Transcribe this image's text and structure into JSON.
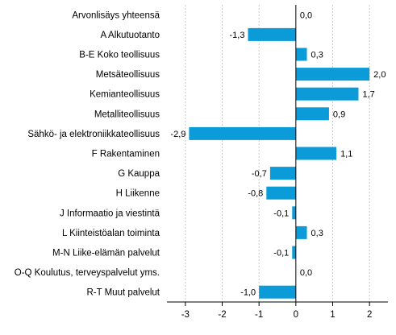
{
  "chart_data": {
    "type": "bar",
    "orientation": "horizontal",
    "categories": [
      "Arvonlisäys yhteensä",
      "A Alkutuotanto",
      "B-E Koko teollisuus",
      "Metsäteollisuus",
      "Kemianteollisuus",
      "Metalliteollisuus",
      "Sähkö- ja elektroniikkateollisuus",
      "F Rakentaminen",
      "G Kauppa",
      "H Liikenne",
      "J Informaatio ja viestintä",
      "L Kiinteistöalan toiminta",
      "M-N Liike-elämän palvelut",
      "O-Q Koulutus, terveyspalvelut yms.",
      "R-T Muut palvelut"
    ],
    "values": [
      0.0,
      -1.3,
      0.3,
      2.0,
      1.7,
      0.9,
      -2.9,
      1.1,
      -0.7,
      -0.8,
      -0.1,
      0.3,
      -0.1,
      0.0,
      -1.0
    ],
    "value_labels": [
      "0,0",
      "-1,3",
      "0,3",
      "2,0",
      "1,7",
      "0,9",
      "-2,9",
      "1,1",
      "-0,7",
      "-0,8",
      "-0,1",
      "0,3",
      "-0,1",
      "0,0",
      "-1,0"
    ],
    "xlim": [
      -3.5,
      2.5
    ],
    "xticks": [
      -3,
      -2,
      -1,
      0,
      1,
      2
    ],
    "xtick_labels": [
      "-3",
      "-2",
      "-1",
      "0",
      "1",
      "2"
    ],
    "bar_color": "#0a9bd8",
    "grid": "vertical-dashed",
    "title": "",
    "xlabel": "",
    "ylabel": ""
  }
}
